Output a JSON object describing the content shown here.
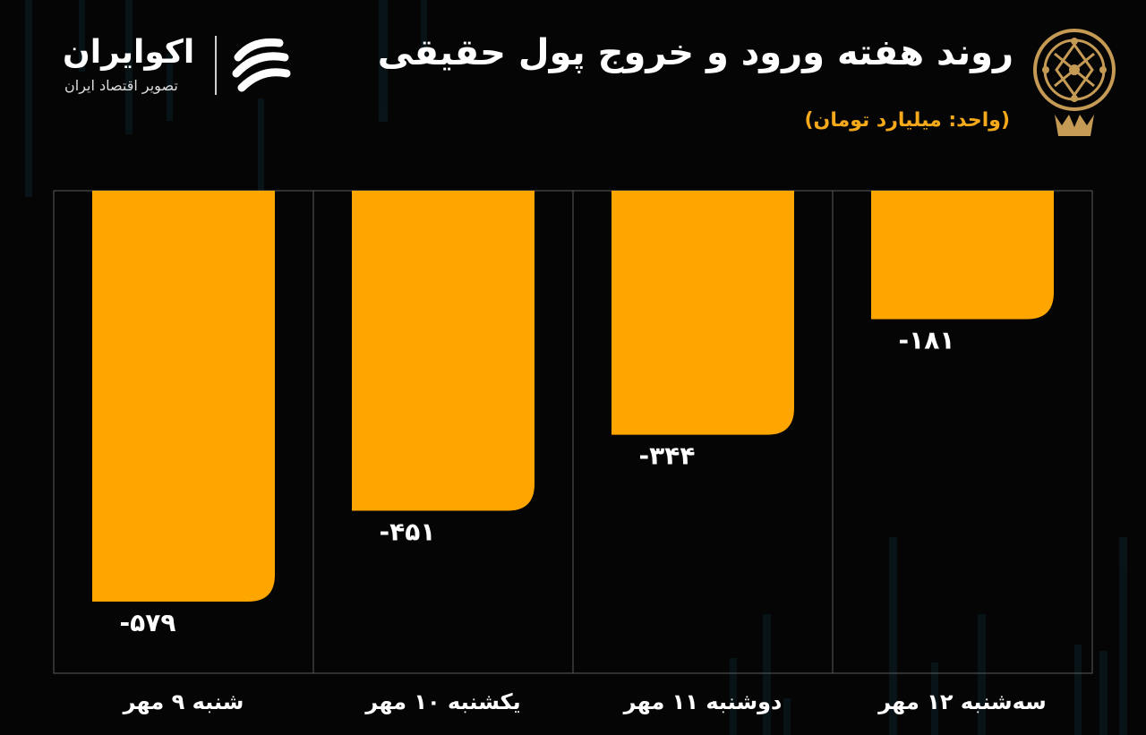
{
  "header": {
    "title": "روند هفته ورود و خروج پول حقیقی",
    "subtitle": "(واحد: میلیارد تومان)"
  },
  "brand": {
    "name": "اکوایران",
    "tagline": "تصویر اقتصاد ایران",
    "logo_icon": "ecoiran-logo-icon",
    "seal_icon": "tehran-stock-exchange-seal-icon"
  },
  "colors": {
    "background": "#050505",
    "bar": "#ffa500",
    "grid": "#5a5a5a",
    "seal": "#c49a55",
    "text": "#ffffff"
  },
  "chart_data": {
    "type": "bar",
    "categories": [
      "شنبه ۹ مهر",
      "یکشنبه ۱۰ مهر",
      "دوشنبه ۱۱ مهر",
      "سه‌شنبه ۱۲ مهر"
    ],
    "values": [
      -579,
      -451,
      -344,
      -181
    ],
    "value_labels": [
      "-۵۷۹",
      "-۴۵۱",
      "-۳۴۴",
      "-۱۸۱"
    ],
    "ylim": [
      -680,
      0
    ],
    "grid": true,
    "legend": "none"
  }
}
